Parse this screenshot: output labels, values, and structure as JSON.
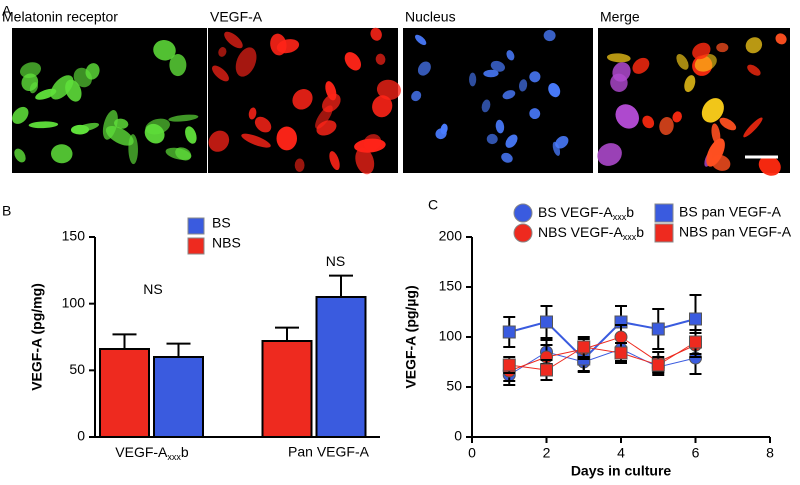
{
  "panel_labels": [
    "A",
    "B",
    "C"
  ],
  "images": [
    {
      "title": "Melatonin receptor",
      "color": "#3fd62a"
    },
    {
      "title": "VEGF-A",
      "color": "#e8281e"
    },
    {
      "title": "Nucleus",
      "color": "#3a68e8"
    },
    {
      "title": "Merge",
      "color": "#f26522"
    }
  ],
  "chart_data": [
    {
      "type": "bar",
      "ylabel": "VEGF-A (pg/mg)",
      "categories": [
        [
          "VEGF-A",
          {
            "sub": "xxx"
          },
          "b"
        ],
        "Pan VEGF-A"
      ],
      "series": [
        {
          "name": "BS",
          "color": "#3a5bdf",
          "values": [
            60,
            105
          ],
          "errors": [
            10,
            16
          ]
        },
        {
          "name": "NBS",
          "color": "#ee2a1f",
          "values": [
            66,
            72
          ],
          "errors": [
            11,
            10
          ]
        }
      ],
      "annotations": [
        {
          "text": "NS",
          "category": 0,
          "y": 110
        },
        {
          "text": "NS",
          "category": 1,
          "y": 131
        }
      ],
      "ylim": [
        0,
        150
      ],
      "yticks": [
        0,
        50,
        100,
        150
      ]
    },
    {
      "type": "line",
      "xlabel": "Days in culture",
      "ylabel": "VEGF-A (pg/µg)",
      "x": [
        1,
        2,
        3,
        4,
        5,
        6
      ],
      "series": [
        {
          "name": [
            "BS VEGF-A",
            {
              "sub": "xxx"
            },
            "b"
          ],
          "color": "#3a5bdf",
          "marker": "circle",
          "values": [
            62,
            85,
            75,
            88,
            70,
            79
          ],
          "errors": [
            10,
            12,
            10,
            12,
            8,
            16
          ]
        },
        {
          "name": "BS pan VEGF-A",
          "color": "#3a5bdf",
          "marker": "square",
          "values": [
            105,
            115,
            78,
            115,
            108,
            118
          ],
          "errors": [
            15,
            16,
            12,
            16,
            20,
            24
          ]
        },
        {
          "name": [
            "NBS VEGF-A",
            {
              "sub": "xxx"
            },
            "b"
          ],
          "color": "#ee2a1f",
          "marker": "circle",
          "values": [
            66,
            80,
            88,
            100,
            75,
            92
          ],
          "errors": [
            10,
            12,
            10,
            12,
            10,
            12
          ]
        },
        {
          "name": "NBS pan VEGF-A",
          "color": "#ee2a1f",
          "marker": "square",
          "values": [
            72,
            67,
            90,
            84,
            72,
            95
          ],
          "errors": [
            8,
            10,
            10,
            10,
            8,
            12
          ]
        }
      ],
      "xlim": [
        0,
        8
      ],
      "xticks": [
        0,
        2,
        4,
        6,
        8
      ],
      "ylim": [
        0,
        200
      ],
      "yticks": [
        0,
        50,
        100,
        150,
        200
      ]
    }
  ]
}
